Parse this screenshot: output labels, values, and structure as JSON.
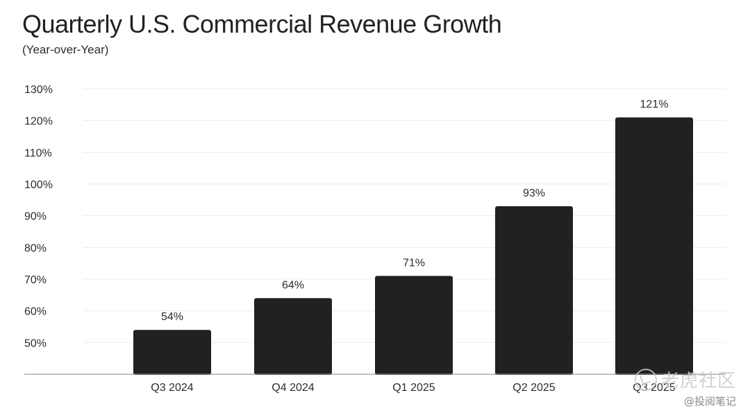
{
  "chart_data": {
    "type": "bar",
    "title": "Quarterly U.S. Commercial Revenue Growth",
    "subtitle": "(Year-over-Year)",
    "xlabel": "",
    "ylabel": "",
    "categories": [
      "Q3 2024",
      "Q4 2024",
      "Q1 2025",
      "Q2 2025",
      "Q3 2025"
    ],
    "values": [
      54,
      64,
      71,
      93,
      121
    ],
    "data_labels": [
      "54%",
      "64%",
      "71%",
      "93%",
      "121%"
    ],
    "ylim": [
      40,
      130
    ],
    "yticks": [
      50,
      60,
      70,
      80,
      90,
      100,
      110,
      120,
      130
    ],
    "ytick_labels": [
      "50%",
      "60%",
      "70%",
      "80%",
      "90%",
      "100%",
      "110%",
      "120%",
      "130%"
    ],
    "grid": true,
    "legend": "none",
    "colors": {
      "bar": "#1f2123",
      "grid": "#ececec",
      "axis": "#9a9a9a",
      "text": "#2a2c2e"
    }
  },
  "watermark": {
    "main": "老虎社区",
    "sub": "@投阅笔记",
    "icon": "tiger-community-logo-icon"
  }
}
